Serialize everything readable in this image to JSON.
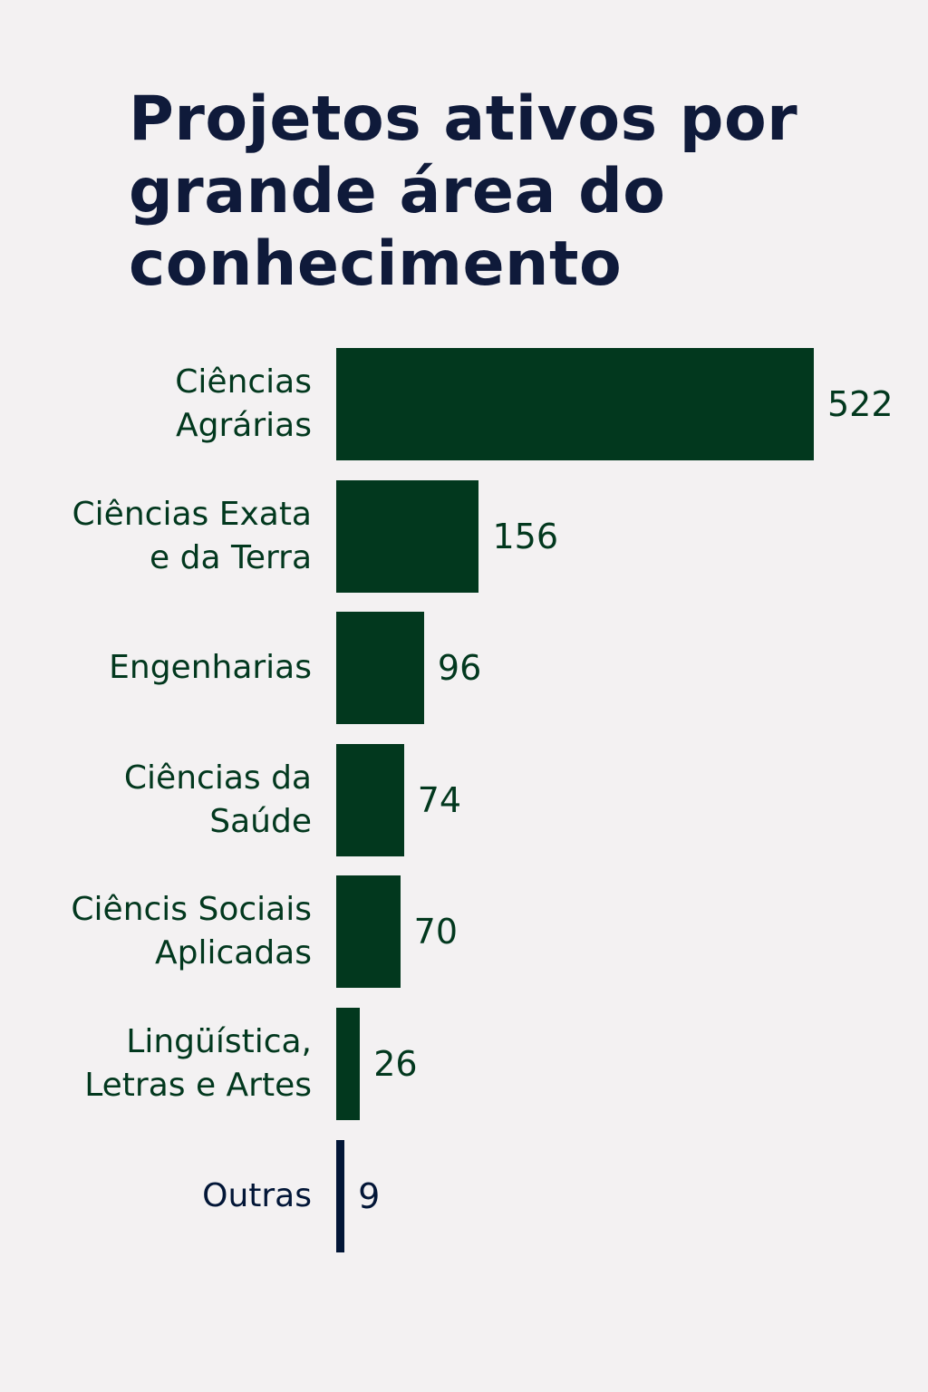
{
  "chart_data": {
    "type": "bar",
    "orientation": "horizontal",
    "title": "Projetos ativos por grande área do conhecimento",
    "categories": [
      "Ciências\nAgrárias",
      "Ciências Exata\ne da Terra",
      "Engenharias",
      "Ciências da\nSaúde",
      "Ciêncis Sociais\nAplicadas",
      "Lingüística,\nLetras e Artes",
      "Outras"
    ],
    "values": [
      522,
      156,
      96,
      74,
      70,
      26,
      9
    ],
    "colors": [
      "#02381e",
      "#02381e",
      "#02381e",
      "#02381e",
      "#02381e",
      "#02381e",
      "#021637"
    ]
  }
}
